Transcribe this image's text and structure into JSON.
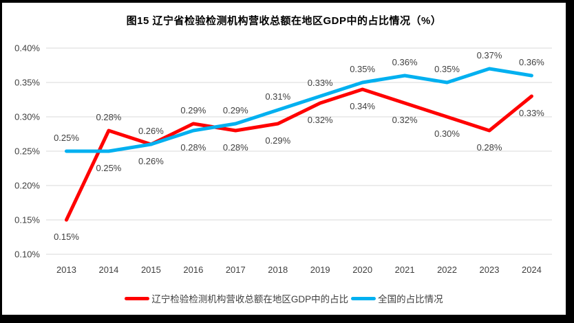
{
  "chart_data": {
    "type": "line",
    "title": "图15 辽宁省检验检测机构营收总额在地区GDP中的占比情况（%）",
    "xlabel": "",
    "ylabel": "",
    "categories": [
      "2013",
      "2014",
      "2015",
      "2016",
      "2017",
      "2018",
      "2019",
      "2020",
      "2021",
      "2022",
      "2023",
      "2024"
    ],
    "ylim": [
      0.1,
      0.4
    ],
    "grid": true,
    "legend_position": "bottom",
    "y_ticks": [
      {
        "value": 0.1,
        "label": "0.10%"
      },
      {
        "value": 0.15,
        "label": "0.15%"
      },
      {
        "value": 0.2,
        "label": "0.20%"
      },
      {
        "value": 0.25,
        "label": "0.25%"
      },
      {
        "value": 0.3,
        "label": "0.30%"
      },
      {
        "value": 0.35,
        "label": "0.35%"
      },
      {
        "value": 0.4,
        "label": "0.40%"
      }
    ],
    "series": [
      {
        "id": "liaoning",
        "name": "辽宁检验检测机构营收总额在地区GDP中的占比",
        "color": "#FF0000",
        "values": [
          0.15,
          0.28,
          0.26,
          0.29,
          0.28,
          0.29,
          0.32,
          0.34,
          0.32,
          0.3,
          0.28,
          0.33
        ],
        "labels": [
          "0.15%",
          "0.28%",
          "0.26%",
          "0.29%",
          "0.28%",
          "0.29%",
          "0.32%",
          "0.34%",
          "0.32%",
          "0.30%",
          "0.28%",
          "0.33%"
        ],
        "label_positions": [
          "below",
          "above",
          "above",
          "above",
          "below",
          "below",
          "below",
          "below",
          "below",
          "below",
          "below",
          "below"
        ]
      },
      {
        "id": "national",
        "name": "全国的占比情况",
        "color": "#00B0F0",
        "values": [
          0.25,
          0.25,
          0.26,
          0.28,
          0.29,
          0.31,
          0.33,
          0.35,
          0.36,
          0.35,
          0.37,
          0.36
        ],
        "labels": [
          "0.25%",
          "0.25%",
          "0.26%",
          "0.28%",
          "0.29%",
          "0.31%",
          "0.33%",
          "0.35%",
          "0.36%",
          "0.35%",
          "0.37%",
          "0.36%"
        ],
        "label_positions": [
          "above",
          "below",
          "below",
          "below",
          "above",
          "above",
          "above",
          "above",
          "above",
          "above",
          "above",
          "above"
        ]
      }
    ]
  }
}
